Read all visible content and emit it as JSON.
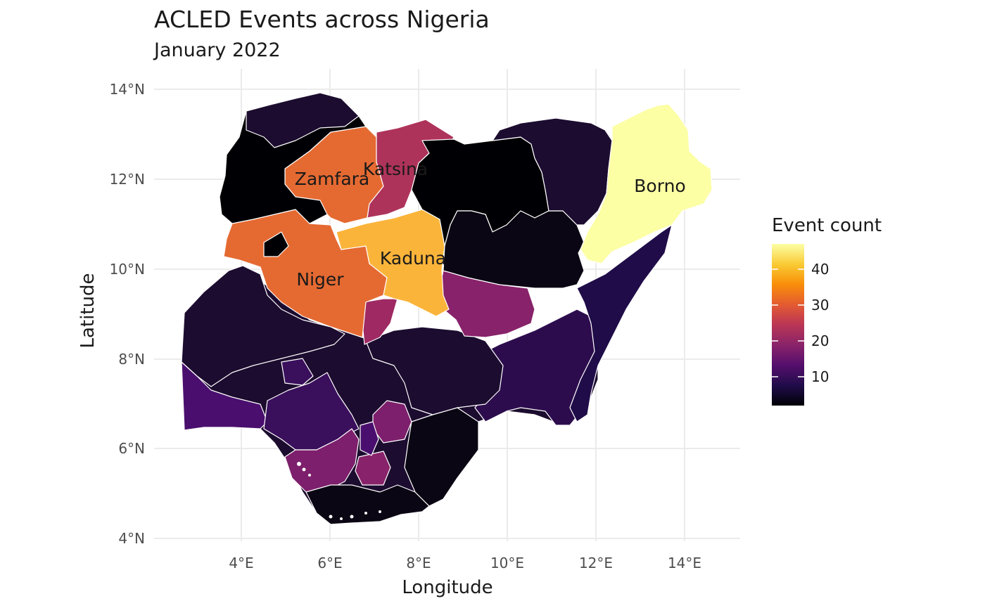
{
  "title": "ACLED Events across Nigeria",
  "subtitle": "January 2022",
  "x_axis_label": "Longitude",
  "y_axis_label": "Latitude",
  "x_ticks": [
    "4°E",
    "6°E",
    "8°E",
    "10°E",
    "12°E",
    "14°E"
  ],
  "y_ticks": [
    "14°N",
    "12°N",
    "10°N",
    "8°N",
    "6°N",
    "4°N"
  ],
  "legend": {
    "title": "Event count",
    "ticks": [
      "40",
      "30",
      "20",
      "10"
    ],
    "palette": "inferno",
    "colors": [
      "#000004",
      "#1f0c48",
      "#550f6d",
      "#88226a",
      "#ba3655",
      "#e35933",
      "#f98e09",
      "#f9c932",
      "#fcffa4"
    ]
  },
  "state_labels": [
    "Borno",
    "Zamfara",
    "Katsina",
    "Kaduna",
    "Niger"
  ],
  "colors": {
    "borno": "#fcffa4",
    "kaduna": "#fbb43a",
    "zamfara": "#e56a32",
    "niger": "#e56a32",
    "katsina": "#ae335a",
    "dark": "#0b0613",
    "black": "#000004",
    "deep_purple": "#1c0c2f",
    "purple": "#3a0f5c",
    "magenta": "#7d1f6c"
  },
  "chart_data": {
    "type": "choropleth",
    "title": "ACLED Events across Nigeria",
    "subtitle": "January 2022",
    "xlabel": "Longitude",
    "ylabel": "Latitude",
    "xlim": [
      2.5,
      15.0
    ],
    "ylim": [
      4.0,
      14.0
    ],
    "x_ticks": [
      4,
      6,
      8,
      10,
      12,
      14
    ],
    "y_ticks": [
      4,
      6,
      8,
      10,
      12,
      14
    ],
    "legend_title": "Event count",
    "legend_range": [
      2,
      48
    ],
    "legend_breaks": [
      10,
      20,
      30,
      40
    ],
    "grid": true,
    "legend_position": "right",
    "labeled_regions": [
      {
        "name": "Borno",
        "value": 47
      },
      {
        "name": "Kaduna",
        "value": 38
      },
      {
        "name": "Zamfara",
        "value": 31
      },
      {
        "name": "Niger",
        "value": 31
      },
      {
        "name": "Katsina",
        "value": 23
      }
    ]
  }
}
